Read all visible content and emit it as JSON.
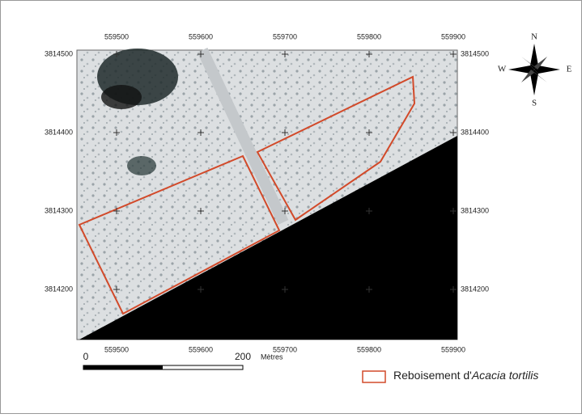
{
  "map": {
    "x_labels_top": [
      559500,
      559600,
      559700,
      559800,
      559900
    ],
    "x_labels_bottom": [
      559500,
      559600,
      559700,
      559800,
      559900
    ],
    "y_labels_left": [
      3814500,
      3814400,
      3814300,
      3814200
    ],
    "y_labels_right": [
      3814500,
      3814400,
      3814300,
      3814200
    ],
    "compass": {
      "north": "N",
      "south": "S",
      "west": "W",
      "east": "E"
    },
    "scale_bar": {
      "start": 0,
      "end": 200,
      "unit": "Mètres"
    },
    "legend": {
      "label": "Reboisement d'",
      "species": "Acacia tortilis"
    }
  }
}
